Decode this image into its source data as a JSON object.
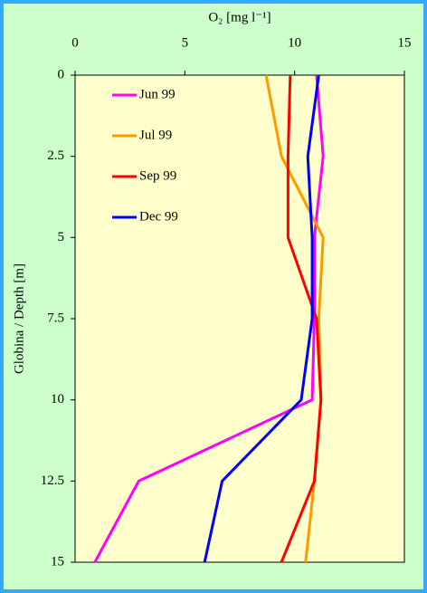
{
  "chart_data": {
    "type": "line",
    "x_label": "O₂ [mg l⁻¹]",
    "y_label": "Globina / Depth [m]",
    "y": [
      0,
      2.5,
      5,
      7.5,
      10,
      12.5,
      15
    ],
    "series": [
      {
        "name": "Jun 99",
        "color": "#ff00ff",
        "values": [
          11.0,
          11.3,
          10.9,
          10.9,
          10.8,
          2.9,
          0.9
        ]
      },
      {
        "name": "Jul 99",
        "color": "#ff9900",
        "values": [
          8.7,
          9.4,
          11.3,
          11.1,
          11.2,
          10.9,
          10.5
        ]
      },
      {
        "name": "Sep 99",
        "color": "#ff0000",
        "values": [
          9.8,
          9.7,
          9.7,
          11.0,
          11.2,
          10.9,
          9.4
        ]
      },
      {
        "name": "Dec 99",
        "color": "#0000ff",
        "values": [
          11.1,
          10.6,
          10.8,
          10.8,
          10.3,
          6.7,
          5.9
        ]
      }
    ],
    "xlim": [
      0,
      15
    ],
    "xticks": [
      0,
      5,
      10,
      15
    ],
    "ylim": [
      0,
      15
    ],
    "yticks": [
      0,
      2.5,
      5,
      7.5,
      10,
      12.5,
      15
    ],
    "y_inverted": true,
    "x_axis_position": "top",
    "legend": "upper left"
  }
}
